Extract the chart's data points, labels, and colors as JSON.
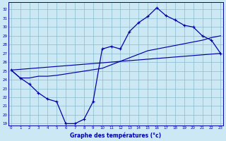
{
  "title": "Graphe des températures (°c)",
  "bg_color": "#cce8f4",
  "grid_color": "#88bbcc",
  "line_color": "#0000aa",
  "ylim": [
    18.8,
    32.8
  ],
  "xlim": [
    -0.3,
    23.3
  ],
  "ytick_vals": [
    19,
    20,
    21,
    22,
    23,
    24,
    25,
    26,
    27,
    28,
    29,
    30,
    31,
    32
  ],
  "xtick_vals": [
    0,
    1,
    2,
    3,
    4,
    5,
    6,
    7,
    8,
    9,
    10,
    11,
    12,
    13,
    14,
    15,
    16,
    17,
    18,
    19,
    20,
    21,
    22,
    23
  ],
  "main_x": [
    0,
    1,
    2,
    3,
    4,
    5,
    6,
    7,
    8,
    9,
    10,
    11,
    12,
    13,
    14,
    15,
    16,
    17,
    18,
    19,
    20,
    21,
    22,
    23
  ],
  "main_y": [
    25.1,
    24.2,
    23.5,
    22.5,
    21.8,
    21.5,
    19.0,
    19.0,
    19.5,
    21.5,
    27.5,
    27.8,
    27.5,
    29.5,
    30.5,
    31.2,
    32.2,
    31.3,
    30.8,
    30.2,
    30.0,
    29.0,
    28.5,
    27.0
  ],
  "line2_x": [
    0,
    1,
    2,
    3,
    4,
    5,
    10,
    15,
    16,
    17,
    18,
    19,
    20,
    21,
    22,
    23
  ],
  "line2_y": [
    25.1,
    24.2,
    24.2,
    24.4,
    24.4,
    24.5,
    25.3,
    27.3,
    27.5,
    27.7,
    27.9,
    28.1,
    28.3,
    28.5,
    28.8,
    29.0
  ],
  "line3_x": [
    0,
    23
  ],
  "line3_y": [
    25.1,
    27.0
  ]
}
